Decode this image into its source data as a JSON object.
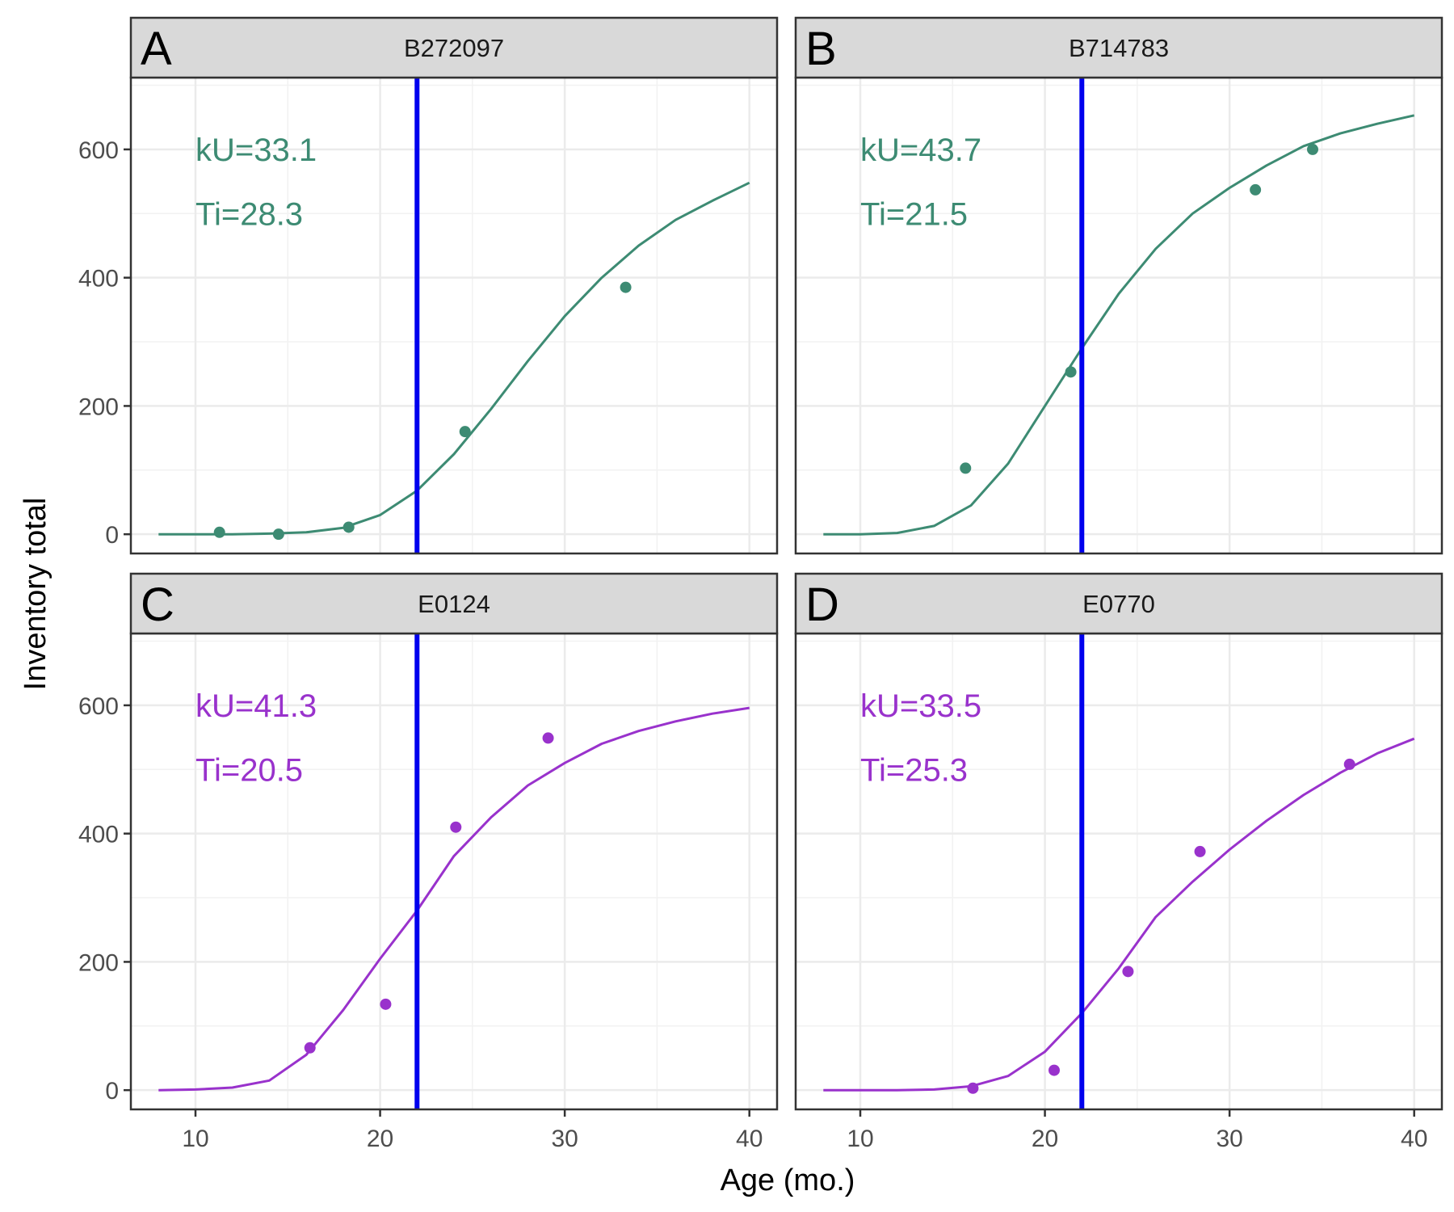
{
  "chart_data": {
    "type": "scatter",
    "xlabel": "Age (mo.)",
    "ylabel": "Inventory total",
    "xlim": [
      6.5,
      41.5
    ],
    "ylim": [
      -30,
      712
    ],
    "x_ticks": [
      10,
      20,
      30,
      40
    ],
    "y_ticks": [
      0,
      200,
      400,
      600
    ],
    "grid": true,
    "reference_line": {
      "x": 22,
      "color": "#0000ee"
    },
    "panels": [
      {
        "letter": "A",
        "title": "B272097",
        "color": "#3d8b73",
        "kU_label": "kU=33.1",
        "Ti_label": "Ti=28.3",
        "points": [
          {
            "x": 11.3,
            "y": 3
          },
          {
            "x": 14.5,
            "y": 0
          },
          {
            "x": 18.3,
            "y": 11
          },
          {
            "x": 24.6,
            "y": 160
          },
          {
            "x": 33.3,
            "y": 385
          }
        ],
        "curve": {
          "x": [
            8,
            10,
            12,
            14,
            16,
            18,
            20,
            22,
            24,
            26,
            28,
            30,
            32,
            34,
            36,
            38,
            40
          ],
          "y": [
            0,
            0,
            0,
            1,
            3,
            10,
            30,
            68,
            125,
            195,
            270,
            340,
            400,
            450,
            490,
            520,
            548
          ]
        }
      },
      {
        "letter": "B",
        "title": "B714783",
        "color": "#3d8b73",
        "kU_label": "kU=43.7",
        "Ti_label": "Ti=21.5",
        "points": [
          {
            "x": 15.7,
            "y": 103
          },
          {
            "x": 21.4,
            "y": 253
          },
          {
            "x": 31.4,
            "y": 537
          },
          {
            "x": 34.5,
            "y": 600
          }
        ],
        "curve": {
          "x": [
            8,
            10,
            12,
            14,
            16,
            18,
            20,
            22,
            24,
            26,
            28,
            30,
            32,
            34,
            36,
            38,
            40
          ],
          "y": [
            0,
            0,
            2,
            13,
            45,
            110,
            200,
            290,
            375,
            445,
            500,
            540,
            575,
            605,
            625,
            640,
            653
          ]
        }
      },
      {
        "letter": "C",
        "title": "E0124",
        "color": "#9932cc",
        "kU_label": "kU=41.3",
        "Ti_label": "Ti=20.5",
        "points": [
          {
            "x": 16.2,
            "y": 66
          },
          {
            "x": 20.3,
            "y": 134
          },
          {
            "x": 24.1,
            "y": 410
          },
          {
            "x": 29.1,
            "y": 549
          }
        ],
        "curve": {
          "x": [
            8,
            10,
            12,
            14,
            16,
            18,
            20,
            22,
            24,
            26,
            28,
            30,
            32,
            34,
            36,
            38,
            40
          ],
          "y": [
            0,
            1,
            4,
            15,
            55,
            125,
            205,
            280,
            365,
            425,
            475,
            510,
            540,
            560,
            575,
            587,
            596
          ]
        }
      },
      {
        "letter": "D",
        "title": "E0770",
        "color": "#9932cc",
        "kU_label": "kU=33.5",
        "Ti_label": "Ti=25.3",
        "points": [
          {
            "x": 16.1,
            "y": 3
          },
          {
            "x": 20.5,
            "y": 31
          },
          {
            "x": 24.5,
            "y": 185
          },
          {
            "x": 28.4,
            "y": 372
          },
          {
            "x": 36.5,
            "y": 508
          }
        ],
        "curve": {
          "x": [
            8,
            10,
            12,
            14,
            16,
            18,
            20,
            22,
            24,
            26,
            28,
            30,
            32,
            34,
            36,
            38,
            40
          ],
          "y": [
            0,
            0,
            0,
            1,
            6,
            22,
            60,
            120,
            190,
            270,
            325,
            375,
            420,
            460,
            495,
            525,
            548
          ]
        }
      }
    ]
  }
}
